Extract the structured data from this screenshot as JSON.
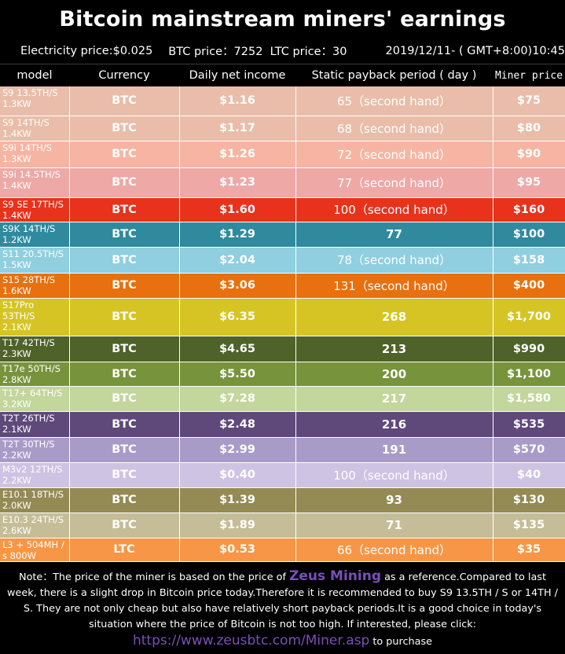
{
  "title": "Bitcoin mainstream miners' earnings",
  "info": {
    "electricity": "Electricity price:$0.025",
    "btc": "BTC price：7252",
    "ltc": "LTC price：30",
    "datetime": "2019/12/11- ( GMT+8:00)10:45"
  },
  "headers": [
    "model",
    "Currency",
    "Daily net income",
    "Static payback period ( day )",
    "Miner price"
  ],
  "rows": [
    {
      "model": "S9 13.5TH/S\n1.3KW",
      "currency": "BTC",
      "income": "$1.16",
      "payback": "65（second hand）",
      "price": "$75",
      "color": "#e9bda9"
    },
    {
      "model": "S9  14TH/S\n1.4KW",
      "currency": "BTC",
      "income": "$1.17",
      "payback": "68（second hand）",
      "price": "$80",
      "color": "#e9bda9"
    },
    {
      "model": "S9i  14TH/S\n1.3KW",
      "currency": "BTC",
      "income": "$1.26",
      "payback": "72（second hand）",
      "price": "$90",
      "color": "#f6b5a2"
    },
    {
      "model": "S9i  14.5TH/S\n1.4KW",
      "currency": "BTC",
      "income": "$1.23",
      "payback": "77（second hand）",
      "price": "$95",
      "color": "#eea8a6"
    },
    {
      "model": "S9 SE  17TH/S\n1.4KW",
      "currency": "BTC",
      "income": "$1.60",
      "payback": "100（second hand）",
      "price": "$160",
      "color": "#e8321c"
    },
    {
      "model": "S9K  14TH/S\n1.2KW",
      "currency": "BTC",
      "income": "$1.29",
      "payback": "77",
      "price": "$100",
      "color": "#2f8a9e"
    },
    {
      "model": "S11  20.5TH/S\n1.5KW",
      "currency": "BTC",
      "income": "$2.04",
      "payback": "78（second hand）",
      "price": "$158",
      "color": "#8fcfe0"
    },
    {
      "model": "S15  28TH/S\n1.6KW",
      "currency": "BTC",
      "income": "$3.06",
      "payback": "131（second hand）",
      "price": "$400",
      "color": "#e8700f"
    },
    {
      "model": "S17Pro\n53TH/S\n2.1KW",
      "currency": "BTC",
      "income": "$6.35",
      "payback": "268",
      "price": "$1,700",
      "color": "#d6c424"
    },
    {
      "model": "T17  42TH/S\n2.3KW",
      "currency": "BTC",
      "income": "$4.65",
      "payback": "213",
      "price": "$990",
      "color": "#4f6229"
    },
    {
      "model": "T17e 50TH/S\n2.8KW",
      "currency": "BTC",
      "income": "$5.50",
      "payback": "200",
      "price": "$1,100",
      "color": "#77933c"
    },
    {
      "model": "T17+ 64TH/S\n3.2KW",
      "currency": "BTC",
      "income": "$7.28",
      "payback": "217",
      "price": "$1,580",
      "color": "#c3d69b"
    },
    {
      "model": "T2T  26TH/S\n2.1KW",
      "currency": "BTC",
      "income": "$2.48",
      "payback": "216",
      "price": "$535",
      "color": "#5f497a"
    },
    {
      "model": "T2T  30TH/S\n2.2KW",
      "currency": "BTC",
      "income": "$2.99",
      "payback": "191",
      "price": "$570",
      "color": "#a99bc8"
    },
    {
      "model": "M3v2 12TH/S\n2.2KW",
      "currency": "BTC",
      "income": "$0.40",
      "payback": "100（second hand）",
      "price": "$40",
      "color": "#cfc3e3"
    },
    {
      "model": "E10.1 18TH/S\n2.0KW",
      "currency": "BTC",
      "income": "$1.39",
      "payback": "93",
      "price": "$130",
      "color": "#948a54"
    },
    {
      "model": "E10.3 24TH/S\n2.6KW",
      "currency": "BTC",
      "income": "$1.89",
      "payback": "71",
      "price": "$135",
      "color": "#c4bd97"
    },
    {
      "model": "L3 + 504MH /\ns  800W",
      "currency": "LTC",
      "income": "$0.53",
      "payback": "66（second hand）",
      "price": "$35",
      "color": "#f79646"
    }
  ],
  "note": {
    "part1": "Note：The price of the miner is based on the price of ",
    "brand": "Zeus Mining",
    "part2": " as a reference.Compared to last week, there is a slight drop in Bitcoin price today.Therefore it is recommended to buy S9 13.5TH / S or 14TH / S. They are not only cheap but also have relatively short payback periods.It is a good choice in today's situation where the price of Bitcoin is not too high. If interested, please click: ",
    "link": "https://www.zeusbtc.com/Miner.asp",
    "part3": " to purchase"
  }
}
